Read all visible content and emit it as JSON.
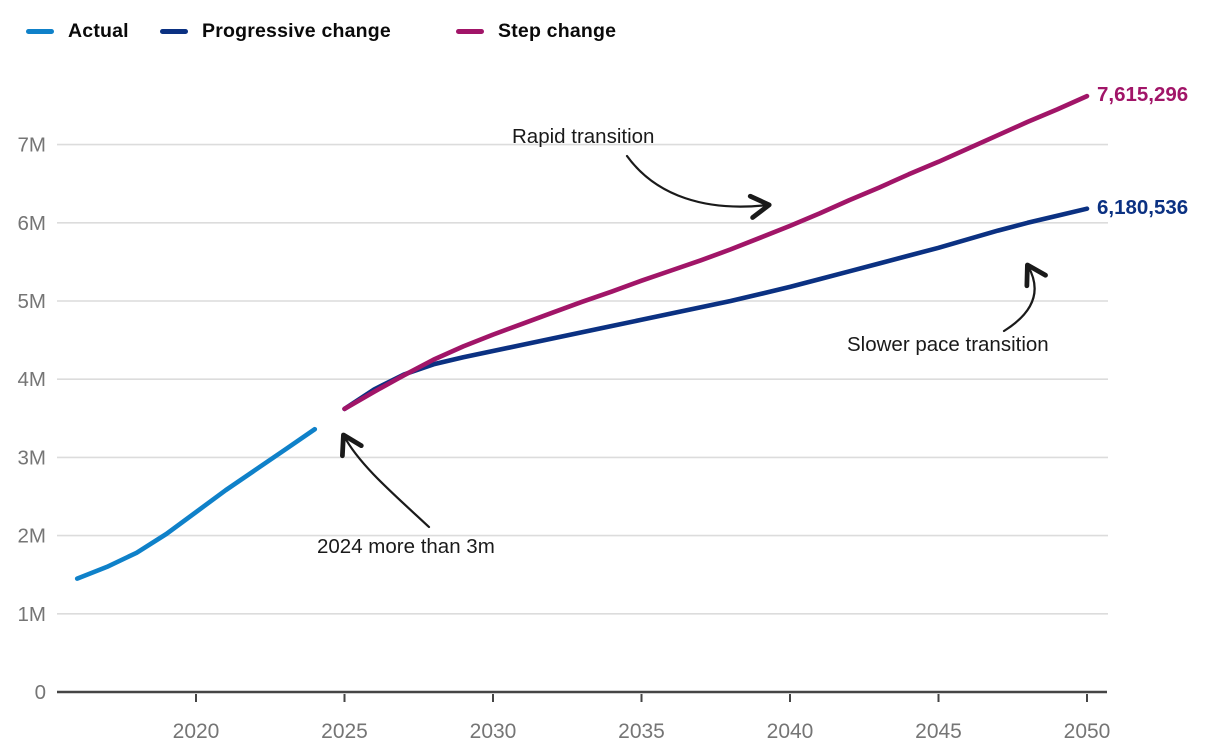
{
  "legend": {
    "items": [
      {
        "label": "Actual",
        "color": "#0f81c9"
      },
      {
        "label": "Progressive change",
        "color": "#0b3182"
      },
      {
        "label": "Step change",
        "color": "#a11568"
      }
    ]
  },
  "chart_data": {
    "type": "line",
    "title": "",
    "xlabel": "",
    "ylabel": "",
    "grid": "horizontal",
    "legend_position": "top-left",
    "x_axis": {
      "min": 2016,
      "max": 2050,
      "ticks": [
        {
          "label": "2020",
          "value": 2020
        },
        {
          "label": "2025",
          "value": 2025
        },
        {
          "label": "2030",
          "value": 2030
        },
        {
          "label": "2035",
          "value": 2035
        },
        {
          "label": "2040",
          "value": 2040
        },
        {
          "label": "2045",
          "value": 2045
        },
        {
          "label": "2050",
          "value": 2050
        }
      ]
    },
    "y_axis": {
      "min": 0,
      "max": 7.65,
      "unit": "millions",
      "ticks": [
        {
          "label": "0",
          "value": 0
        },
        {
          "label": "1M",
          "value": 1
        },
        {
          "label": "2M",
          "value": 2
        },
        {
          "label": "3M",
          "value": 3
        },
        {
          "label": "4M",
          "value": 4
        },
        {
          "label": "5M",
          "value": 5
        },
        {
          "label": "6M",
          "value": 6
        },
        {
          "label": "7M",
          "value": 7
        }
      ]
    },
    "series": [
      {
        "name": "Actual",
        "color": "#0f81c9",
        "points": [
          [
            2016,
            1.45
          ],
          [
            2017,
            1.6
          ],
          [
            2018,
            1.78
          ],
          [
            2019,
            2.02
          ],
          [
            2020,
            2.3
          ],
          [
            2021,
            2.58
          ],
          [
            2022,
            2.84
          ],
          [
            2023,
            3.1
          ],
          [
            2024,
            3.36
          ]
        ]
      },
      {
        "name": "Progressive change",
        "color": "#0b3182",
        "end_label": "6,180,536",
        "end_value": 6180536,
        "points": [
          [
            2025,
            3.62
          ],
          [
            2026,
            3.87
          ],
          [
            2027,
            4.06
          ],
          [
            2028,
            4.19
          ],
          [
            2029,
            4.28
          ],
          [
            2030,
            4.36
          ],
          [
            2031,
            4.44
          ],
          [
            2032,
            4.52
          ],
          [
            2033,
            4.6
          ],
          [
            2034,
            4.68
          ],
          [
            2035,
            4.76
          ],
          [
            2036,
            4.84
          ],
          [
            2037,
            4.92
          ],
          [
            2038,
            5.0
          ],
          [
            2039,
            5.09
          ],
          [
            2040,
            5.18
          ],
          [
            2041,
            5.28
          ],
          [
            2042,
            5.38
          ],
          [
            2043,
            5.48
          ],
          [
            2044,
            5.58
          ],
          [
            2045,
            5.68
          ],
          [
            2046,
            5.79
          ],
          [
            2047,
            5.9
          ],
          [
            2048,
            6.0
          ],
          [
            2049,
            6.09
          ],
          [
            2050,
            6.18
          ]
        ]
      },
      {
        "name": "Step change",
        "color": "#a11568",
        "end_label": "7,615,296",
        "end_value": 7615296,
        "points": [
          [
            2025,
            3.62
          ],
          [
            2026,
            3.84
          ],
          [
            2027,
            4.05
          ],
          [
            2028,
            4.25
          ],
          [
            2029,
            4.42
          ],
          [
            2030,
            4.57
          ],
          [
            2031,
            4.71
          ],
          [
            2032,
            4.85
          ],
          [
            2033,
            4.99
          ],
          [
            2034,
            5.12
          ],
          [
            2035,
            5.26
          ],
          [
            2036,
            5.39
          ],
          [
            2037,
            5.52
          ],
          [
            2038,
            5.66
          ],
          [
            2039,
            5.81
          ],
          [
            2040,
            5.96
          ],
          [
            2041,
            6.12
          ],
          [
            2042,
            6.29
          ],
          [
            2043,
            6.45
          ],
          [
            2044,
            6.62
          ],
          [
            2045,
            6.78
          ],
          [
            2046,
            6.95
          ],
          [
            2047,
            7.12
          ],
          [
            2048,
            7.29
          ],
          [
            2049,
            7.45
          ],
          [
            2050,
            7.62
          ]
        ]
      }
    ],
    "annotations": {
      "rapid": {
        "text": "Rapid transition",
        "target_series": "Step change"
      },
      "slower": {
        "text": "Slower pace transition",
        "target_series": "Progressive change"
      },
      "note2024": {
        "text": "2024 more than 3m",
        "target_series": "Actual"
      }
    }
  },
  "colors": {
    "grid": "#dcdcdc",
    "axis": "#454545",
    "tick_label": "#757575",
    "annotation": "#1a1a1a"
  }
}
